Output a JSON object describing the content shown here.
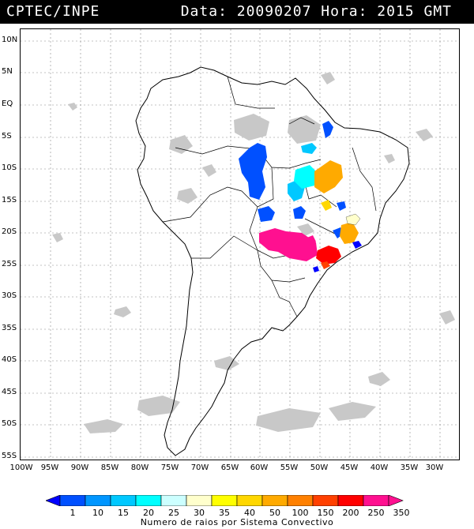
{
  "header": {
    "org": "CPTEC/INPE",
    "datetime": "Data: 20090207 Hora: 2015 GMT"
  },
  "map": {
    "lat_labels": [
      "10N",
      "5N",
      "EQ",
      "5S",
      "10S",
      "15S",
      "20S",
      "25S",
      "30S",
      "35S",
      "40S",
      "45S",
      "50S",
      "55S"
    ],
    "lon_labels": [
      "100W",
      "95W",
      "90W",
      "85W",
      "80W",
      "75W",
      "70W",
      "65W",
      "60W",
      "55W",
      "50W",
      "45W",
      "40W",
      "35W",
      "30W"
    ],
    "land_color": "#ffffff",
    "cloud_color": "#c8c8c8"
  },
  "legend": {
    "ticks": [
      "1",
      "10",
      "15",
      "20",
      "25",
      "30",
      "35",
      "40",
      "50",
      "100",
      "150",
      "200",
      "250",
      "350"
    ],
    "colors": [
      "#0000ff",
      "#0050ff",
      "#0096ff",
      "#00c8ff",
      "#00ffff",
      "#ccffff",
      "#ffffcc",
      "#ffff00",
      "#ffd700",
      "#ffaa00",
      "#ff8000",
      "#ff4000",
      "#ff0000",
      "#ff1090"
    ],
    "title": "Numero de raios por Sistema Convectivo"
  }
}
